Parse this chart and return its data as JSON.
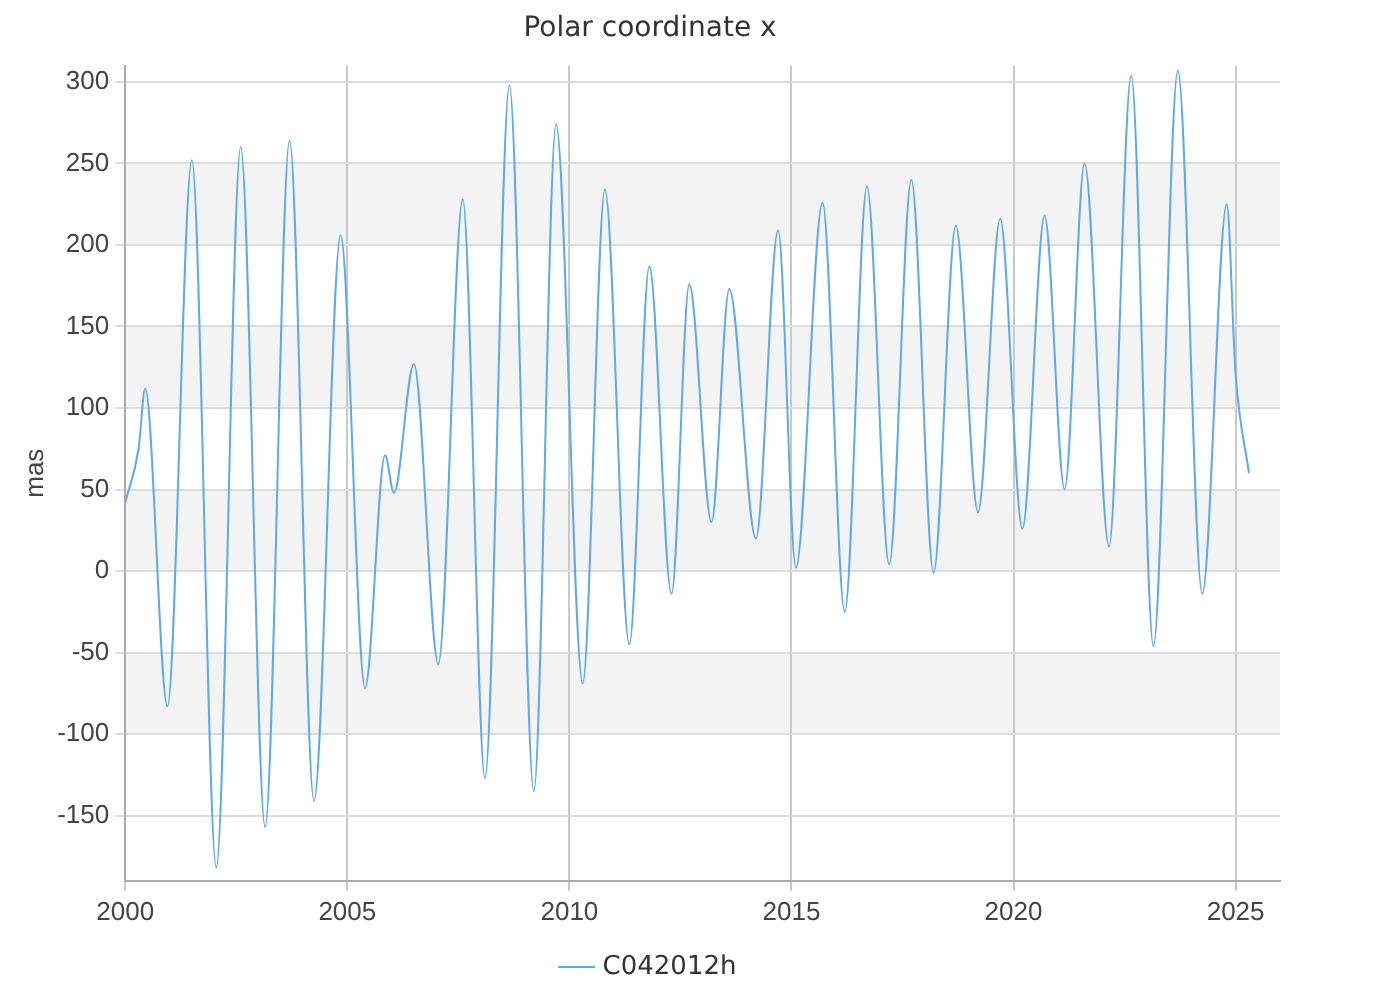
{
  "chart_data": {
    "type": "line",
    "title": "Polar coordinate x",
    "ylabel": "mas",
    "xlim": [
      2000,
      2026
    ],
    "xticks": [
      2000,
      2005,
      2010,
      2015,
      2020,
      2025
    ],
    "ylim": [
      -190,
      310
    ],
    "yticks": [
      -150,
      -100,
      -50,
      0,
      50,
      100,
      150,
      200,
      250,
      300
    ],
    "grid": true,
    "legend": "bottom",
    "marker": "none",
    "line_style": "solid",
    "series": [
      {
        "name": "C042012h",
        "color": "#5ba8f5",
        "x": [
          2000.0,
          2000.3,
          2000.45,
          2000.95,
          2001.5,
          2002.05,
          2002.6,
          2003.15,
          2003.7,
          2004.25,
          2004.85,
          2005.4,
          2005.85,
          2006.05,
          2006.5,
          2007.05,
          2007.6,
          2008.1,
          2008.65,
          2009.2,
          2009.7,
          2010.3,
          2010.8,
          2011.35,
          2011.8,
          2012.3,
          2012.7,
          2013.2,
          2013.6,
          2014.2,
          2014.7,
          2015.1,
          2015.7,
          2016.2,
          2016.7,
          2017.2,
          2017.7,
          2018.2,
          2018.7,
          2019.2,
          2019.7,
          2020.2,
          2020.7,
          2021.15,
          2021.6,
          2022.15,
          2022.65,
          2023.15,
          2023.7,
          2024.25,
          2024.8,
          2025.0,
          2025.3
        ],
        "values": [
          42,
          75,
          112,
          -83,
          252,
          -182,
          260,
          -157,
          264,
          -141,
          206,
          -72,
          71,
          48,
          127,
          -57,
          228,
          -127,
          298,
          -135,
          274,
          -69,
          234,
          -45,
          187,
          -14,
          176,
          30,
          173,
          20,
          209,
          2,
          226,
          -25,
          236,
          4,
          240,
          -1,
          212,
          36,
          216,
          26,
          218,
          50,
          250,
          15,
          304,
          -46,
          307,
          -14,
          225,
          121,
          60
        ]
      }
    ]
  }
}
